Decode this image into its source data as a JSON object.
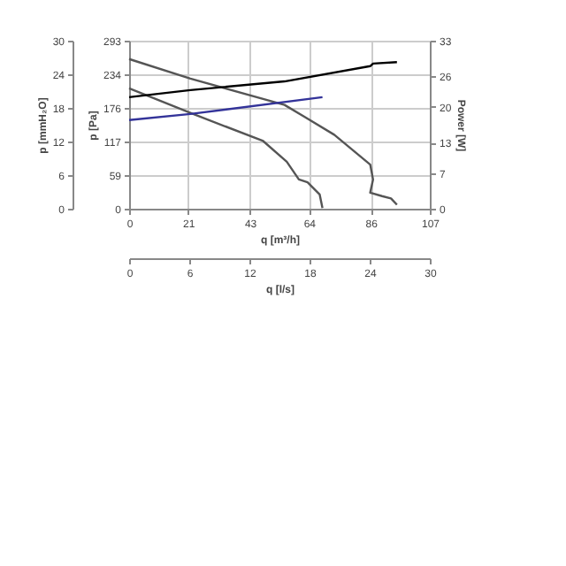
{
  "chart_data": {
    "type": "line",
    "xlabel": "q [m³/h]",
    "xlim": [
      0,
      107
    ],
    "xticks": [
      0,
      21,
      43,
      64,
      86,
      107
    ],
    "x2label": "q [l/s]",
    "x2lim": [
      0,
      30
    ],
    "x2ticks": [
      0,
      6,
      12,
      18,
      24,
      30
    ],
    "ylabel": "p [Pa]",
    "ylim": [
      0,
      293
    ],
    "yticks": [
      0,
      59,
      117,
      176,
      234,
      293
    ],
    "y3label": "p [mmH₂O]",
    "y3lim": [
      0,
      30
    ],
    "y3ticks": [
      0,
      6,
      12,
      18,
      24,
      30
    ],
    "y2label": "Power [W]",
    "y2lim": [
      0,
      33
    ],
    "y2ticks": [
      0,
      7,
      13,
      20,
      26,
      33
    ],
    "grid": true,
    "legend": false,
    "marker": "none",
    "line_style": "solid",
    "series": [
      {
        "color": "#555555",
        "x": [
          0,
          21.8,
          55.3,
          62.5,
          73,
          85.8,
          86.8,
          85.8,
          90,
          93.2,
          95.3
        ],
        "values": [
          261,
          227,
          181,
          160,
          129,
          77,
          51,
          28,
          22,
          18,
          7
        ]
      },
      {
        "color": "#555555",
        "x": [
          0,
          21.8,
          47.7,
          56.1,
          60.4,
          63.5,
          67.8,
          68.8
        ],
        "values": [
          210,
          167,
          118,
          82,
          51,
          46,
          25,
          1
        ]
      },
      {
        "color": "#000000",
        "axis": "y2",
        "x": [
          0,
          21.8,
          55.3,
          85.8,
          86.8,
          95.3
        ],
        "values": [
          21.9,
          23.3,
          25.0,
          28.0,
          28.5,
          28.8
        ]
      },
      {
        "color": "#333399",
        "axis": "y2",
        "x": [
          0,
          21.8,
          68.8
        ],
        "values": [
          17.4,
          18.6,
          21.9
        ]
      }
    ]
  }
}
